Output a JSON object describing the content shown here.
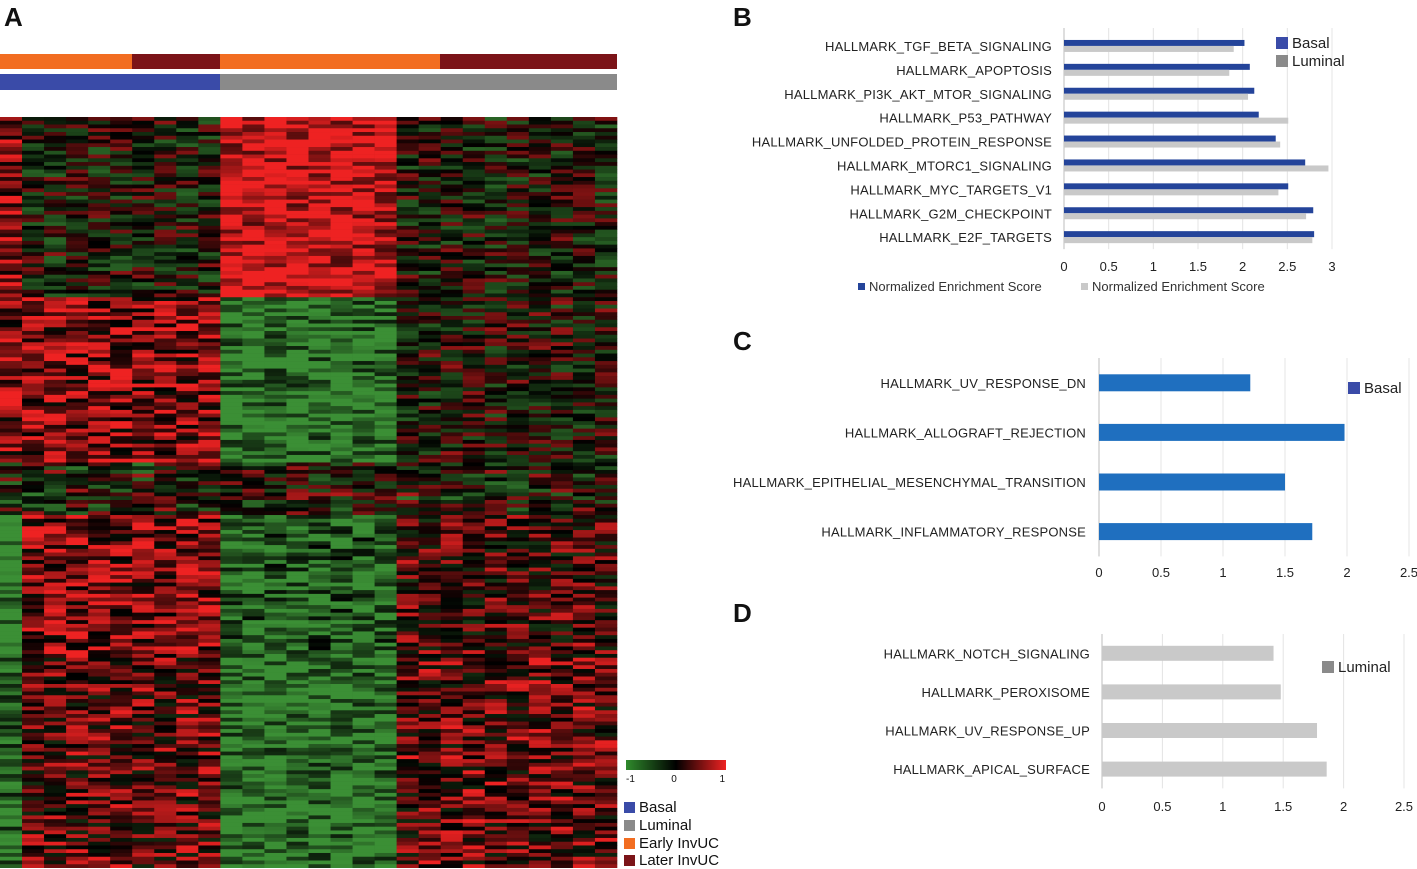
{
  "panels": {
    "a": "A",
    "b": "B",
    "c": "C",
    "d": "D"
  },
  "colors": {
    "basal": "#3a4ba8",
    "luminal": "#8a8a8a",
    "early": "#f26d21",
    "later": "#7b1418",
    "bar_dark_blue": "#24449a",
    "bar_light_grey": "#c9c9c9",
    "bar_mid_blue": "#1f6fbf",
    "heat_red": "#ee2222",
    "heat_green": "#3b8f35",
    "heat_black": "#000000"
  },
  "heatmap": {
    "columns": 28,
    "rows": 200,
    "seed": 7,
    "scale": {
      "min_label": "-1",
      "mid_label": "0",
      "max_label": "1"
    },
    "legend": [
      {
        "label": "Basal",
        "color": "#3a4ba8"
      },
      {
        "label": "Luminal",
        "color": "#8a8a8a"
      },
      {
        "label": "Early InvUC",
        "color": "#f26d21"
      },
      {
        "label": "Later InvUC",
        "color": "#7b1418"
      }
    ]
  },
  "chart_data": [
    {
      "id": "B",
      "type": "bar",
      "orientation": "horizontal",
      "categories": [
        "HALLMARK_TGF_BETA_SIGNALING",
        "HALLMARK_APOPTOSIS",
        "HALLMARK_PI3K_AKT_MTOR_SIGNALING",
        "HALLMARK_P53_PATHWAY",
        "HALLMARK_UNFOLDED_PROTEIN_RESPONSE",
        "HALLMARK_MTORC1_SIGNALING",
        "HALLMARK_MYC_TARGETS_V1",
        "HALLMARK_G2M_CHECKPOINT",
        "HALLMARK_E2F_TARGETS"
      ],
      "series": [
        {
          "name": "Normalized Enrichment Score",
          "group": "Basal",
          "color": "#24449a",
          "values": [
            2.02,
            2.08,
            2.13,
            2.18,
            2.37,
            2.7,
            2.51,
            2.79,
            2.8
          ]
        },
        {
          "name": "Normalized Enrichment Score",
          "group": "Luminal",
          "color": "#c9c9c9",
          "values": [
            1.9,
            1.85,
            2.06,
            2.51,
            2.42,
            2.96,
            2.4,
            2.71,
            2.78
          ]
        }
      ],
      "xlim": [
        0,
        3
      ],
      "xticks": [
        "0",
        "0.5",
        "1",
        "1.5",
        "2",
        "2.5",
        "3"
      ],
      "legend": [
        {
          "label": "Basal",
          "color": "#3a4ba8"
        },
        {
          "label": "Luminal",
          "color": "#8a8a8a"
        }
      ],
      "bottom_legend": [
        {
          "label": "Normalized Enrichment Score",
          "color": "#24449a"
        },
        {
          "label": "Normalized Enrichment Score",
          "color": "#c9c9c9"
        }
      ]
    },
    {
      "id": "C",
      "type": "bar",
      "orientation": "horizontal",
      "categories": [
        "HALLMARK_UV_RESPONSE_DN",
        "HALLMARK_ALLOGRAFT_REJECTION",
        "HALLMARK_EPITHELIAL_MESENCHYMAL_TRANSITION",
        "HALLMARK_INFLAMMATORY_RESPONSE"
      ],
      "series": [
        {
          "name": "Basal",
          "color": "#1f6fbf",
          "values": [
            1.22,
            1.98,
            1.5,
            1.72
          ]
        }
      ],
      "xlim": [
        0,
        2.5
      ],
      "xticks": [
        "0",
        "0.5",
        "1",
        "1.5",
        "2",
        "2.5"
      ],
      "legend": [
        {
          "label": "Basal",
          "color": "#3a4ba8"
        }
      ]
    },
    {
      "id": "D",
      "type": "bar",
      "orientation": "horizontal",
      "categories": [
        "HALLMARK_NOTCH_SIGNALING",
        "HALLMARK_PEROXISOME",
        "HALLMARK_UV_RESPONSE_UP",
        "HALLMARK_APICAL_SURFACE"
      ],
      "series": [
        {
          "name": "Luminal",
          "color": "#c9c9c9",
          "values": [
            1.42,
            1.48,
            1.78,
            1.86
          ]
        }
      ],
      "xlim": [
        0,
        2.5
      ],
      "xticks": [
        "0",
        "0.5",
        "1",
        "1.5",
        "2",
        "2.5"
      ],
      "legend": [
        {
          "label": "Luminal",
          "color": "#8a8a8a"
        }
      ]
    }
  ]
}
